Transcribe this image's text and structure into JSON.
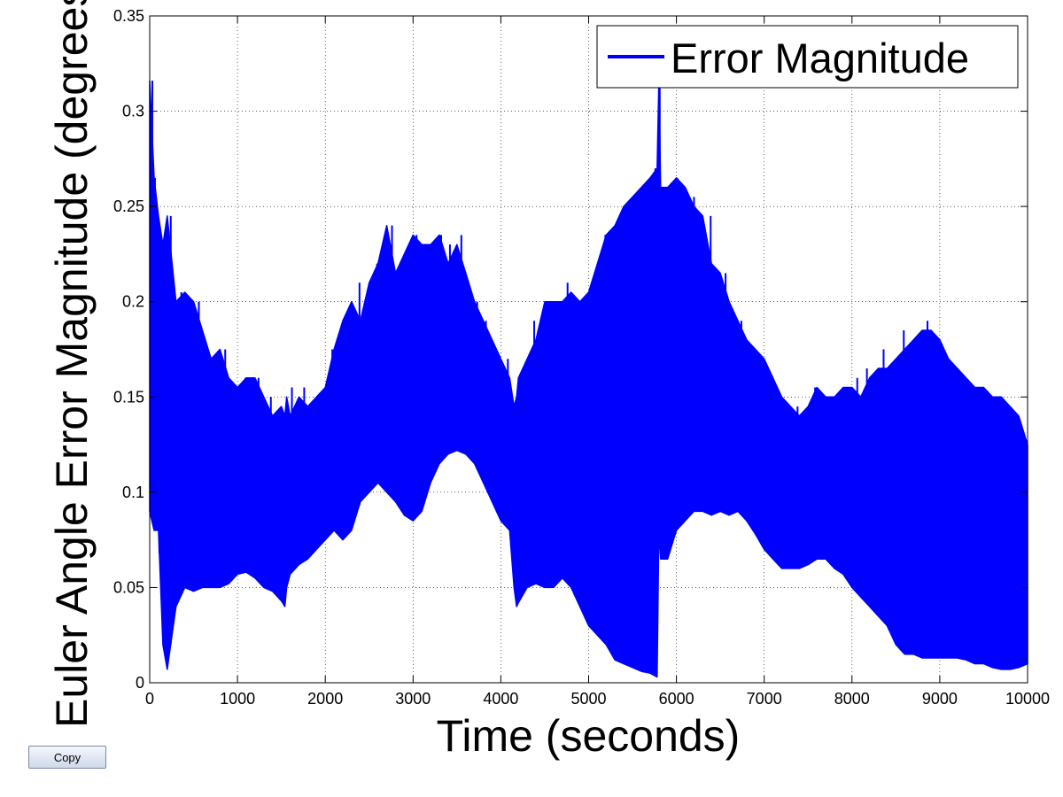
{
  "window": {
    "copy_label": "Copy"
  },
  "chart_data": {
    "type": "line",
    "title": "",
    "xlabel": "Time (seconds)",
    "ylabel": "Euler Angle Error Magnitude (degrees)",
    "xlim": [
      0,
      10000
    ],
    "ylim": [
      0,
      0.35
    ],
    "xticks": [
      0,
      1000,
      2000,
      3000,
      4000,
      5000,
      6000,
      7000,
      8000,
      9000,
      10000
    ],
    "yticks": [
      0,
      0.05,
      0.1,
      0.15,
      0.2,
      0.25,
      0.3,
      0.35
    ],
    "ytick_labels": [
      "0",
      "0.05",
      "0.1",
      "0.15",
      "0.2",
      "0.25",
      "0.3",
      "0.35"
    ],
    "grid": true,
    "legend": {
      "placement": "top-right"
    },
    "series": [
      {
        "name": "Error Magnitude",
        "color": "#0000ff",
        "x": [
          0,
          50,
          100,
          150,
          200,
          300,
          400,
          500,
          600,
          700,
          800,
          900,
          1000,
          1100,
          1200,
          1300,
          1400,
          1500,
          1540,
          1560,
          1600,
          1700,
          1800,
          1900,
          2000,
          2100,
          2200,
          2300,
          2400,
          2500,
          2600,
          2700,
          2800,
          2900,
          3000,
          3100,
          3200,
          3300,
          3400,
          3500,
          3600,
          3700,
          3800,
          3900,
          4000,
          4100,
          4150,
          4180,
          4200,
          4300,
          4400,
          4500,
          4600,
          4700,
          4800,
          4900,
          5000,
          5100,
          5200,
          5300,
          5400,
          5500,
          5600,
          5700,
          5780,
          5800,
          5820,
          5900,
          6000,
          6100,
          6200,
          6300,
          6400,
          6500,
          6600,
          6700,
          6800,
          6900,
          7000,
          7100,
          7200,
          7300,
          7400,
          7500,
          7600,
          7700,
          7800,
          7900,
          8000,
          8100,
          8200,
          8300,
          8400,
          8500,
          8600,
          8700,
          8800,
          8900,
          9000,
          9100,
          9200,
          9300,
          9400,
          9500,
          9600,
          9700,
          9800,
          9900,
          10000
        ],
        "upper": [
          0.316,
          0.265,
          0.245,
          0.23,
          0.245,
          0.2,
          0.205,
          0.2,
          0.185,
          0.17,
          0.175,
          0.16,
          0.155,
          0.16,
          0.16,
          0.15,
          0.14,
          0.145,
          0.14,
          0.15,
          0.14,
          0.15,
          0.145,
          0.15,
          0.155,
          0.175,
          0.19,
          0.2,
          0.19,
          0.21,
          0.22,
          0.24,
          0.215,
          0.225,
          0.235,
          0.23,
          0.23,
          0.235,
          0.22,
          0.23,
          0.215,
          0.2,
          0.19,
          0.18,
          0.17,
          0.16,
          0.145,
          0.15,
          0.16,
          0.17,
          0.18,
          0.2,
          0.2,
          0.2,
          0.205,
          0.2,
          0.205,
          0.22,
          0.235,
          0.24,
          0.25,
          0.255,
          0.26,
          0.265,
          0.27,
          0.316,
          0.26,
          0.26,
          0.265,
          0.26,
          0.25,
          0.245,
          0.22,
          0.215,
          0.2,
          0.19,
          0.18,
          0.175,
          0.17,
          0.16,
          0.15,
          0.145,
          0.14,
          0.145,
          0.155,
          0.15,
          0.15,
          0.155,
          0.155,
          0.15,
          0.16,
          0.165,
          0.165,
          0.17,
          0.175,
          0.18,
          0.185,
          0.185,
          0.18,
          0.17,
          0.165,
          0.16,
          0.155,
          0.155,
          0.15,
          0.15,
          0.145,
          0.14,
          0.125
        ],
        "lower": [
          0.09,
          0.08,
          0.08,
          0.02,
          0.007,
          0.04,
          0.05,
          0.048,
          0.05,
          0.05,
          0.05,
          0.052,
          0.057,
          0.058,
          0.055,
          0.05,
          0.048,
          0.043,
          0.04,
          0.05,
          0.057,
          0.062,
          0.065,
          0.07,
          0.075,
          0.08,
          0.075,
          0.08,
          0.095,
          0.1,
          0.105,
          0.1,
          0.095,
          0.088,
          0.085,
          0.09,
          0.105,
          0.115,
          0.12,
          0.122,
          0.12,
          0.115,
          0.105,
          0.095,
          0.085,
          0.08,
          0.05,
          0.04,
          0.042,
          0.05,
          0.052,
          0.05,
          0.05,
          0.055,
          0.05,
          0.04,
          0.03,
          0.025,
          0.02,
          0.012,
          0.01,
          0.008,
          0.006,
          0.005,
          0.003,
          0.08,
          0.065,
          0.065,
          0.08,
          0.085,
          0.09,
          0.09,
          0.088,
          0.09,
          0.088,
          0.09,
          0.085,
          0.078,
          0.07,
          0.065,
          0.06,
          0.06,
          0.06,
          0.062,
          0.065,
          0.065,
          0.06,
          0.057,
          0.05,
          0.045,
          0.04,
          0.035,
          0.03,
          0.02,
          0.015,
          0.015,
          0.013,
          0.013,
          0.013,
          0.013,
          0.013,
          0.012,
          0.01,
          0.01,
          0.008,
          0.007,
          0.007,
          0.008,
          0.01
        ],
        "spikes": [
          [
            30,
            0.316
          ],
          [
            60,
            0.265
          ],
          [
            110,
            0.235
          ],
          [
            240,
            0.245
          ],
          [
            360,
            0.205
          ],
          [
            460,
            0.17
          ],
          [
            560,
            0.2
          ],
          [
            720,
            0.165
          ],
          [
            860,
            0.175
          ],
          [
            1090,
            0.16
          ],
          [
            1240,
            0.16
          ],
          [
            1380,
            0.15
          ],
          [
            1620,
            0.155
          ],
          [
            1760,
            0.155
          ],
          [
            2080,
            0.175
          ],
          [
            2230,
            0.19
          ],
          [
            2390,
            0.21
          ],
          [
            2590,
            0.22
          ],
          [
            2760,
            0.24
          ],
          [
            2960,
            0.225
          ],
          [
            3040,
            0.235
          ],
          [
            3230,
            0.23
          ],
          [
            3320,
            0.235
          ],
          [
            3420,
            0.23
          ],
          [
            3550,
            0.235
          ],
          [
            3730,
            0.2
          ],
          [
            3830,
            0.19
          ],
          [
            4080,
            0.17
          ],
          [
            4380,
            0.19
          ],
          [
            4600,
            0.2
          ],
          [
            4760,
            0.21
          ],
          [
            4940,
            0.2
          ],
          [
            5190,
            0.235
          ],
          [
            5390,
            0.245
          ],
          [
            5520,
            0.25
          ],
          [
            5700,
            0.26
          ],
          [
            5760,
            0.27
          ],
          [
            5810,
            0.316
          ],
          [
            5920,
            0.26
          ],
          [
            6010,
            0.265
          ],
          [
            6200,
            0.255
          ],
          [
            6390,
            0.245
          ],
          [
            6560,
            0.215
          ],
          [
            6740,
            0.19
          ],
          [
            6880,
            0.175
          ],
          [
            7200,
            0.145
          ],
          [
            7380,
            0.145
          ],
          [
            7580,
            0.155
          ],
          [
            7920,
            0.155
          ],
          [
            8060,
            0.16
          ],
          [
            8170,
            0.165
          ],
          [
            8360,
            0.175
          ],
          [
            8590,
            0.185
          ],
          [
            8760,
            0.18
          ],
          [
            8860,
            0.19
          ],
          [
            8980,
            0.17
          ],
          [
            9120,
            0.165
          ],
          [
            9280,
            0.155
          ],
          [
            9470,
            0.155
          ],
          [
            9700,
            0.15
          ],
          [
            9880,
            0.14
          ]
        ]
      }
    ]
  }
}
